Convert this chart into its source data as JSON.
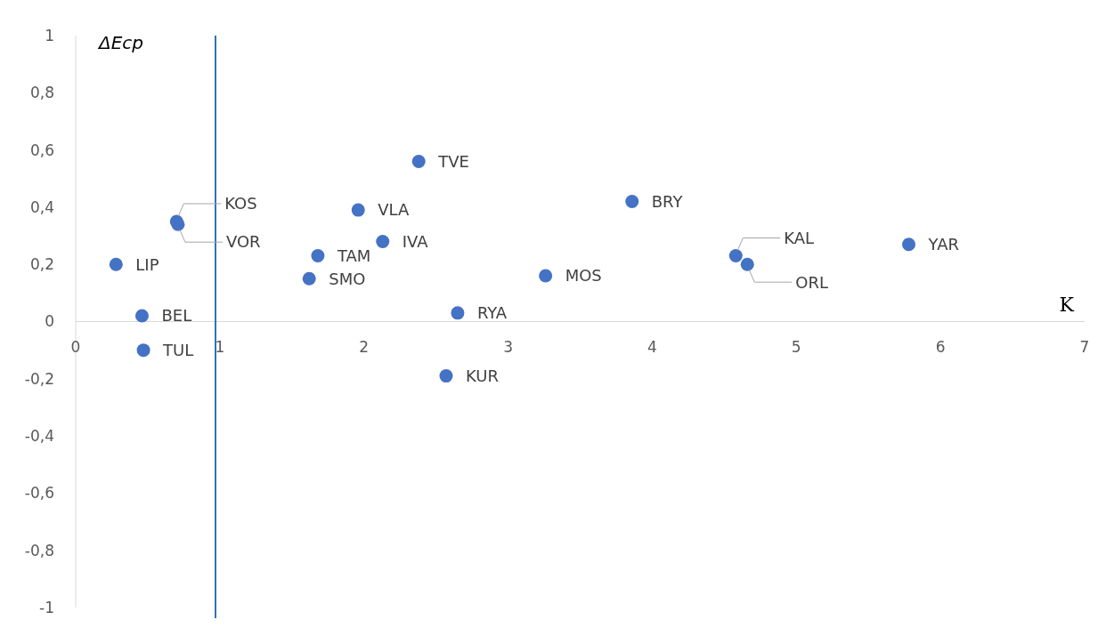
{
  "chart_data": {
    "type": "scatter",
    "xlabel": "K",
    "ylabel": "ΔEср",
    "x": [
      0.28,
      0.46,
      0.47,
      0.7,
      0.71,
      1.62,
      1.68,
      1.96,
      2.13,
      2.38,
      2.57,
      2.65,
      3.26,
      3.86,
      4.58,
      4.66,
      5.78
    ],
    "series": [
      {
        "color": "#4472c4",
        "values": [
          0.2,
          0.02,
          -0.1,
          0.35,
          0.34,
          0.15,
          0.23,
          0.39,
          0.28,
          0.56,
          -0.19,
          0.03,
          0.16,
          0.42,
          0.23,
          0.2,
          0.27
        ]
      }
    ],
    "annotations": [
      {
        "text": "LIP",
        "x": 0.28,
        "y": 0.2
      },
      {
        "text": "BEL",
        "x": 0.46,
        "y": 0.02
      },
      {
        "text": "TUL",
        "x": 0.47,
        "y": -0.1
      },
      {
        "text": "KOS",
        "x": 0.7,
        "y": 0.35
      },
      {
        "text": "VOR",
        "x": 0.71,
        "y": 0.34
      },
      {
        "text": "SMO",
        "x": 1.62,
        "y": 0.15
      },
      {
        "text": "TAM",
        "x": 1.68,
        "y": 0.23
      },
      {
        "text": "VLA",
        "x": 1.96,
        "y": 0.39
      },
      {
        "text": "IVA",
        "x": 2.13,
        "y": 0.28
      },
      {
        "text": "TVE",
        "x": 2.38,
        "y": 0.56
      },
      {
        "text": "KUR",
        "x": 2.57,
        "y": -0.19
      },
      {
        "text": "RYA",
        "x": 2.65,
        "y": 0.03
      },
      {
        "text": "MOS",
        "x": 3.26,
        "y": 0.16
      },
      {
        "text": "BRY",
        "x": 3.86,
        "y": 0.42
      },
      {
        "text": "KAL",
        "x": 4.58,
        "y": 0.23
      },
      {
        "text": "ORL",
        "x": 4.66,
        "y": 0.2
      },
      {
        "text": "YAR",
        "x": 5.78,
        "y": 0.27
      }
    ],
    "xlim": [
      0,
      7
    ],
    "xticks": [
      0,
      1,
      2,
      3,
      4,
      5,
      6,
      7
    ],
    "ylim": [
      -1,
      1
    ],
    "yticks": [
      {
        "value": -1,
        "label": "-1"
      },
      {
        "value": -0.8,
        "label": "-0,8"
      },
      {
        "value": -0.6,
        "label": "-0,6"
      },
      {
        "value": -0.4,
        "label": "-0,4"
      },
      {
        "value": -0.2,
        "label": "-0,2"
      },
      {
        "value": 0,
        "label": "0"
      },
      {
        "value": 0.2,
        "label": "0,2"
      },
      {
        "value": 0.4,
        "label": "0,4"
      },
      {
        "value": 0.6,
        "label": "0,6"
      },
      {
        "value": 0.8,
        "label": "0,8"
      },
      {
        "value": 1,
        "label": "1"
      }
    ],
    "ref_lines": [
      {
        "axis": "x",
        "value": 0.97,
        "color": "#2e75b6"
      }
    ],
    "marker": "circle",
    "grid": false
  }
}
